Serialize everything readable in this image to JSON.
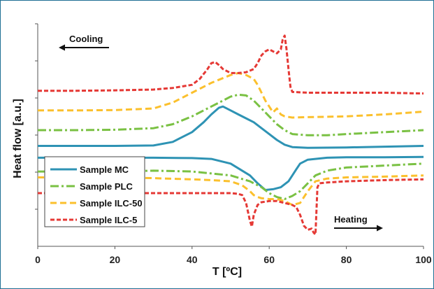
{
  "chart_data": {
    "type": "line",
    "xlabel": "T [ºC]",
    "ylabel": "Heat flow  [a.u.]",
    "xlim": [
      0,
      100
    ],
    "xticks": [
      0,
      20,
      40,
      60,
      80,
      100
    ],
    "y_tick_labels_shown": false,
    "grid": false,
    "legend_position": "bottom-left",
    "annotations": [
      {
        "text": "Cooling",
        "arrow": "left"
      },
      {
        "text": "Heating",
        "arrow": "right"
      }
    ],
    "series": [
      {
        "name": "Sample MC",
        "color": "#2e93b4",
        "style": "solid",
        "cooling": {
          "x": [
            0,
            10,
            20,
            30,
            35,
            40,
            43,
            45,
            47,
            48,
            50,
            52,
            54,
            56,
            58,
            60,
            62,
            64,
            66,
            70,
            80,
            90,
            100
          ],
          "y": [
            2.75,
            2.75,
            2.75,
            2.76,
            2.85,
            3.1,
            3.35,
            3.55,
            3.72,
            3.75,
            3.65,
            3.55,
            3.45,
            3.35,
            3.2,
            3.05,
            2.9,
            2.78,
            2.72,
            2.7,
            2.71,
            2.73,
            2.75
          ]
        },
        "heating": {
          "x": [
            0,
            10,
            20,
            30,
            40,
            45,
            50,
            55,
            57,
            59,
            61,
            63,
            65,
            66,
            67,
            68,
            70,
            75,
            80,
            90,
            100
          ],
          "y": [
            2.45,
            2.45,
            2.45,
            2.45,
            2.44,
            2.42,
            2.3,
            2.0,
            1.8,
            1.63,
            1.65,
            1.7,
            1.85,
            2.0,
            2.15,
            2.3,
            2.4,
            2.45,
            2.46,
            2.46,
            2.47
          ]
        }
      },
      {
        "name": "Sample PLC",
        "color": "#7ac143",
        "style": "dashdot",
        "cooling": {
          "x": [
            0,
            10,
            20,
            30,
            35,
            40,
            45,
            48,
            50,
            52,
            54,
            56,
            58,
            60,
            62,
            64,
            66,
            70,
            75,
            80,
            90,
            100
          ],
          "y": [
            3.15,
            3.15,
            3.16,
            3.2,
            3.3,
            3.5,
            3.75,
            3.9,
            4.0,
            4.05,
            4.03,
            3.9,
            3.7,
            3.5,
            3.3,
            3.15,
            3.05,
            3.02,
            3.02,
            3.05,
            3.1,
            3.15
          ]
        },
        "heating": {
          "x": [
            0,
            10,
            20,
            30,
            40,
            45,
            50,
            55,
            58,
            60,
            62,
            64,
            66,
            68,
            70,
            72,
            75,
            80,
            90,
            100
          ],
          "y": [
            2.1,
            2.1,
            2.1,
            2.12,
            2.1,
            2.05,
            2.0,
            1.85,
            1.7,
            1.55,
            1.45,
            1.4,
            1.48,
            1.6,
            1.8,
            2.0,
            2.12,
            2.2,
            2.25,
            2.3
          ]
        }
      },
      {
        "name": "Sample ILC-50",
        "color": "#fbc02d",
        "style": "dashed",
        "cooling": {
          "x": [
            0,
            10,
            20,
            30,
            35,
            40,
            45,
            50,
            52,
            54,
            56,
            57,
            58,
            59,
            60,
            61,
            62,
            63,
            64,
            66,
            70,
            80,
            90,
            100
          ],
          "y": [
            3.65,
            3.65,
            3.66,
            3.7,
            3.85,
            4.1,
            4.35,
            4.55,
            4.6,
            4.55,
            4.45,
            4.3,
            4.1,
            3.9,
            3.75,
            3.6,
            3.7,
            3.55,
            3.5,
            3.47,
            3.48,
            3.5,
            3.55,
            3.62
          ]
        },
        "heating": {
          "x": [
            0,
            10,
            20,
            30,
            40,
            45,
            50,
            53,
            55,
            56,
            57,
            58,
            60,
            62,
            64,
            66,
            68,
            70,
            72,
            75,
            80,
            90,
            100
          ],
          "y": [
            1.95,
            1.95,
            1.95,
            1.93,
            1.9,
            1.88,
            1.85,
            1.75,
            1.6,
            1.5,
            1.45,
            1.42,
            1.4,
            1.4,
            1.35,
            1.25,
            1.3,
            1.6,
            1.85,
            1.92,
            1.95,
            1.97,
            2.0
          ]
        }
      },
      {
        "name": "Sample ILC-5",
        "color": "#e53935",
        "style": "dashed-fine",
        "cooling": {
          "x": [
            0,
            10,
            20,
            30,
            35,
            40,
            42,
            44,
            45,
            46,
            47,
            48,
            50,
            52,
            54,
            56,
            57,
            58,
            59,
            60,
            61,
            62,
            63,
            63.5,
            64,
            64.5,
            65,
            65.5,
            66,
            70,
            80,
            90,
            100
          ],
          "y": [
            4.15,
            4.15,
            4.16,
            4.18,
            4.22,
            4.3,
            4.45,
            4.7,
            4.85,
            4.88,
            4.8,
            4.7,
            4.6,
            4.6,
            4.62,
            4.7,
            4.85,
            5.05,
            5.15,
            5.2,
            5.15,
            5.1,
            5.2,
            5.45,
            5.55,
            5.2,
            4.7,
            4.25,
            4.12,
            4.1,
            4.1,
            4.1,
            4.08
          ]
        },
        "heating": {
          "x": [
            0,
            10,
            20,
            30,
            40,
            45,
            48,
            50,
            52,
            53,
            54,
            55,
            55.5,
            56,
            57,
            58,
            60,
            62,
            64,
            66,
            67,
            68,
            69,
            70,
            71,
            71.5,
            72,
            72.5,
            73,
            75,
            80,
            90,
            100
          ],
          "y": [
            1.55,
            1.55,
            1.55,
            1.55,
            1.55,
            1.55,
            1.55,
            1.55,
            1.53,
            1.5,
            1.3,
            0.85,
            0.7,
            1.0,
            1.25,
            1.32,
            1.35,
            1.35,
            1.3,
            1.25,
            1.2,
            1.0,
            0.72,
            0.62,
            0.65,
            0.55,
            0.5,
            1.7,
            1.8,
            1.82,
            1.85,
            1.88,
            1.9
          ]
        }
      }
    ]
  }
}
